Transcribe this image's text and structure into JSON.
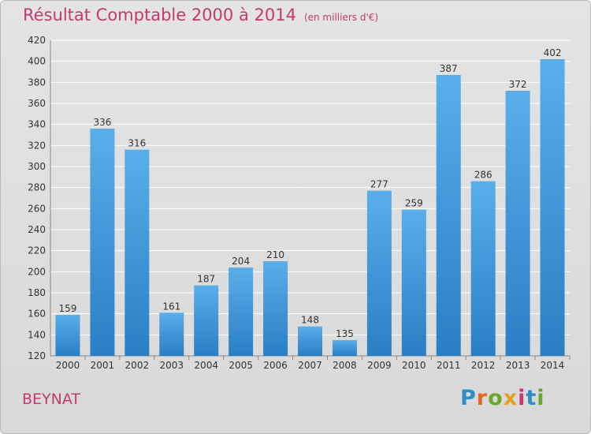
{
  "title": "Résultat Comptable 2000 à 2014",
  "unit_note": "(en milliers d'€)",
  "commune": "BEYNAT",
  "logo": {
    "text": "Proxiti",
    "letter_colors": [
      "#2e8ec6",
      "#e46a1c",
      "#6aa82c",
      "#e4a21c",
      "#c23a6e",
      "#2e8ec6",
      "#6aa82c"
    ]
  },
  "colors": {
    "bar": "#4aa0e2",
    "title": "#c23a6e",
    "grid": "#ffffff"
  },
  "chart_data": {
    "type": "bar",
    "categories": [
      "2000",
      "2001",
      "2002",
      "2003",
      "2004",
      "2005",
      "2006",
      "2007",
      "2008",
      "2009",
      "2010",
      "2011",
      "2012",
      "2013",
      "2014"
    ],
    "values": [
      159,
      336,
      316,
      161,
      187,
      204,
      210,
      148,
      135,
      277,
      259,
      387,
      286,
      372,
      402
    ],
    "title": "Résultat Comptable 2000 à 2014",
    "xlabel": "",
    "ylabel": "",
    "ylim": [
      120,
      420
    ],
    "yticks": [
      120,
      140,
      160,
      180,
      200,
      220,
      240,
      260,
      280,
      300,
      320,
      340,
      360,
      380,
      400,
      420
    ],
    "grid": true,
    "data_labels": true
  }
}
